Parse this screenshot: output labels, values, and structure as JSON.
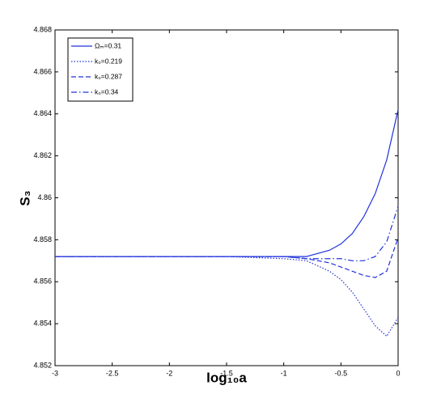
{
  "chart_data": {
    "type": "line",
    "x_label": "log₁₀a",
    "y_label": "S₃",
    "x": [
      -3,
      -2.5,
      -2,
      -1.5,
      -1,
      -0.8,
      -0.6,
      -0.5,
      -0.4,
      -0.3,
      -0.2,
      -0.1,
      0
    ],
    "series": [
      {
        "name": "Ωₘ=0.31",
        "color": "#2233dd",
        "linestyle": "solid",
        "values": [
          4.8572,
          4.8572,
          4.8572,
          4.8572,
          4.8572,
          4.8572,
          4.8575,
          4.8578,
          4.8583,
          4.8591,
          4.8602,
          4.8618,
          4.8642
        ]
      },
      {
        "name": "k₀=0.219",
        "color": "#2233dd",
        "linestyle": "dotted",
        "values": [
          4.8572,
          4.8572,
          4.8572,
          4.8572,
          4.8571,
          4.857,
          4.8565,
          4.8561,
          4.8555,
          4.8547,
          4.8539,
          4.8534,
          4.8543
        ]
      },
      {
        "name": "k₀=0.287",
        "color": "#2233dd",
        "linestyle": "dashed",
        "values": [
          4.8572,
          4.8572,
          4.8572,
          4.8572,
          4.8572,
          4.8571,
          4.8569,
          4.8567,
          4.8565,
          4.8563,
          4.8562,
          4.8565,
          4.8581
        ]
      },
      {
        "name": "k₀=0.34",
        "color": "#2233dd",
        "linestyle": "dashdot",
        "values": [
          4.8572,
          4.8572,
          4.8572,
          4.8572,
          4.8572,
          4.8571,
          4.8571,
          4.8571,
          4.857,
          4.857,
          4.8572,
          4.8579,
          4.8596
        ]
      }
    ],
    "xlim": [
      -3,
      0
    ],
    "xticks": [
      -3,
      -2.5,
      -2,
      -1.5,
      -1,
      -0.5,
      0
    ],
    "ylim": [
      4.852,
      4.868
    ],
    "yticks": [
      4.852,
      4.854,
      4.856,
      4.858,
      4.86,
      4.862,
      4.864,
      4.866,
      4.868
    ],
    "grid": false,
    "legend": "upper-left"
  }
}
